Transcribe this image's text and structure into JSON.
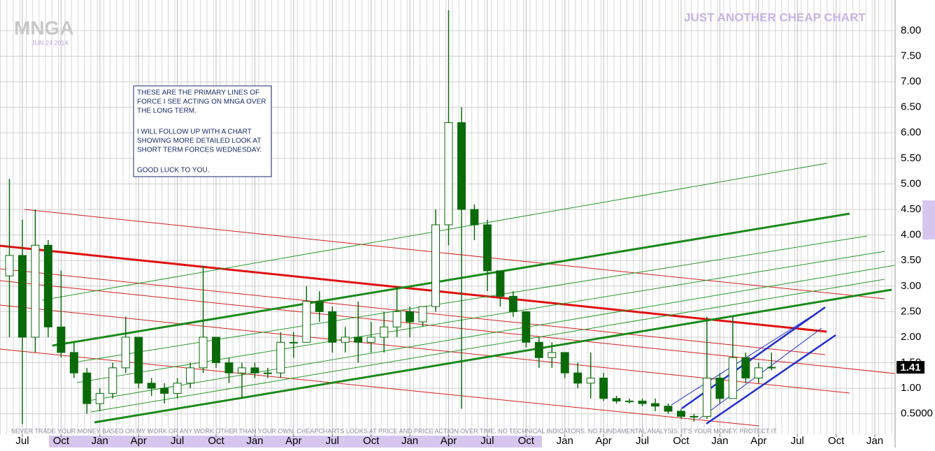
{
  "chart_data": {
    "type": "candlestick",
    "symbol": "MNGA",
    "date": "JUN 24 2014",
    "title": "JUST ANOTHER CHEAP CHART",
    "annotation": [
      "THESE ARE THE PRIMARY LINES OF",
      "FORCE I SEE ACTING ON MNGA OVER",
      "THE LONG TERM.",
      "I WILL FOLLOW UP WITH A CHART",
      "SHOWING MORE DETAILED LOOK AT",
      "SHORT TERM FORCES WEDNESDAY.",
      "GOOD LUCK TO YOU."
    ],
    "footnote": "NEVER TRADE YOUR MONEY BASED ON MY WORK OR ANY WORK OTHER THAN YOUR OWN. CHEAPCHARTS LOOKS AT PRICE AND PRICE ACTION OVER TIME. NO TECHNICAL INDICATORS. NO FUNDAMENTAL ANALYSIS. IT'S YOUR MONEY. PROTECT IT.",
    "last_value": 1.41,
    "color": "#0a6a0a",
    "x": [
      -1,
      0,
      1,
      2,
      3,
      4,
      5,
      6,
      7,
      8,
      9,
      10,
      11,
      12,
      13,
      14,
      15,
      16,
      17,
      18,
      19,
      20,
      21,
      22,
      23,
      24,
      25,
      26,
      27,
      28,
      29,
      30,
      31,
      32,
      33,
      34,
      35,
      36,
      37,
      38,
      39,
      40,
      41,
      42,
      43,
      44,
      45,
      46,
      47,
      48,
      49,
      50,
      51,
      52,
      53,
      54,
      55,
      56,
      57,
      58
    ],
    "open": [
      3.2,
      3.6,
      2.0,
      3.8,
      2.2,
      1.7,
      1.3,
      0.7,
      0.9,
      1.4,
      2.0,
      1.1,
      1.0,
      0.9,
      1.1,
      1.4,
      2.0,
      1.5,
      1.3,
      1.4,
      1.3,
      1.3,
      1.9,
      1.9,
      2.7,
      2.5,
      1.9,
      2.0,
      1.9,
      2.0,
      2.2,
      2.5,
      2.3,
      2.6,
      4.2,
      6.2,
      4.5,
      4.2,
      3.3,
      2.8,
      2.5,
      1.9,
      1.6,
      1.7,
      1.3,
      1.1,
      1.2,
      0.8,
      0.75,
      0.75,
      0.7,
      0.65,
      0.55,
      0.45,
      0.45,
      1.2,
      0.8,
      1.6,
      1.2,
      1.4
    ],
    "high": [
      5.1,
      4.3,
      4.5,
      3.9,
      3.3,
      1.9,
      1.4,
      1.0,
      1.5,
      2.4,
      2.0,
      1.2,
      1.1,
      1.2,
      1.5,
      3.4,
      2.0,
      1.6,
      1.5,
      1.5,
      1.4,
      2.1,
      2.1,
      3.0,
      2.9,
      2.6,
      2.2,
      2.7,
      2.3,
      2.5,
      3.0,
      2.6,
      2.6,
      4.5,
      8.4,
      6.5,
      4.6,
      4.3,
      3.3,
      2.9,
      2.5,
      2.0,
      1.9,
      1.7,
      1.5,
      1.7,
      1.3,
      0.85,
      0.8,
      0.8,
      0.8,
      0.7,
      0.6,
      0.5,
      2.4,
      1.3,
      2.4,
      1.7,
      1.5,
      1.7
    ],
    "low": [
      2.0,
      0.3,
      1.7,
      2.0,
      1.6,
      1.2,
      0.5,
      0.55,
      0.8,
      1.3,
      1.0,
      0.85,
      0.7,
      0.8,
      1.0,
      1.3,
      1.4,
      1.1,
      0.8,
      1.2,
      1.2,
      1.2,
      1.6,
      1.9,
      2.3,
      1.7,
      1.7,
      1.5,
      1.7,
      1.7,
      2.0,
      2.0,
      2.2,
      2.5,
      3.8,
      0.6,
      3.9,
      2.9,
      2.6,
      2.4,
      1.8,
      1.4,
      1.4,
      1.2,
      1.0,
      0.8,
      0.75,
      0.7,
      0.7,
      0.65,
      0.55,
      0.5,
      0.4,
      0.35,
      0.4,
      0.7,
      0.8,
      1.1,
      1.1,
      1.35
    ],
    "close": [
      3.6,
      2.0,
      3.8,
      2.2,
      1.7,
      1.3,
      0.7,
      0.9,
      1.4,
      2.0,
      1.1,
      1.0,
      0.9,
      1.1,
      1.4,
      2.0,
      1.5,
      1.3,
      1.4,
      1.3,
      1.3,
      1.9,
      1.9,
      2.7,
      2.5,
      1.9,
      2.0,
      1.9,
      2.0,
      2.2,
      2.5,
      2.3,
      2.6,
      4.2,
      6.2,
      4.5,
      4.2,
      3.3,
      2.8,
      2.5,
      1.9,
      1.6,
      1.7,
      1.3,
      1.1,
      1.2,
      0.8,
      0.75,
      0.75,
      0.7,
      0.65,
      0.55,
      0.45,
      0.45,
      1.2,
      0.8,
      1.6,
      1.2,
      1.4,
      1.41
    ],
    "xlim": [
      -1.73,
      67.57
    ],
    "xticks": [
      {
        "value": 0,
        "label": "Jul"
      },
      {
        "value": 3,
        "label": "Oct"
      },
      {
        "value": 6,
        "label": "Jan"
      },
      {
        "value": 9,
        "label": "Apr"
      },
      {
        "value": 12,
        "label": "Jul"
      },
      {
        "value": 15,
        "label": "Oct"
      },
      {
        "value": 18,
        "label": "Jan"
      },
      {
        "value": 21,
        "label": "Apr"
      },
      {
        "value": 24,
        "label": "Jul"
      },
      {
        "value": 27,
        "label": "Oct"
      },
      {
        "value": 30,
        "label": "Jan"
      },
      {
        "value": 33,
        "label": "Apr"
      },
      {
        "value": 36,
        "label": "Jul"
      },
      {
        "value": 39,
        "label": "Oct"
      },
      {
        "value": 42,
        "label": "Jan"
      },
      {
        "value": 45,
        "label": "Apr"
      },
      {
        "value": 48,
        "label": "Jul"
      },
      {
        "value": 51,
        "label": "Oct"
      },
      {
        "value": 54,
        "label": "Jan"
      },
      {
        "value": 57,
        "label": "Apr"
      },
      {
        "value": 60,
        "label": "Jul"
      },
      {
        "value": 63,
        "label": "Oct"
      },
      {
        "value": 66,
        "label": "Jan"
      }
    ],
    "ylim": [
      0.1,
      8.6
    ],
    "yticks": [
      {
        "value": 0.5,
        "label": "0.5000"
      },
      {
        "value": 1,
        "label": "1.00"
      },
      {
        "value": 1.5,
        "label": "1.50"
      },
      {
        "value": 2,
        "label": "2.00"
      },
      {
        "value": 2.5,
        "label": "2.50"
      },
      {
        "value": 3,
        "label": "3.00"
      },
      {
        "value": 3.5,
        "label": "3.50"
      },
      {
        "value": 4,
        "label": "4.00"
      },
      {
        "value": 4.5,
        "label": "4.50"
      },
      {
        "value": 5,
        "label": "5.00"
      },
      {
        "value": 5.5,
        "label": "5.50"
      },
      {
        "value": 6,
        "label": "6.00"
      },
      {
        "value": 6.5,
        "label": "6.50"
      },
      {
        "value": 7,
        "label": "7.00"
      },
      {
        "value": 7.5,
        "label": "7.50"
      },
      {
        "value": 8,
        "label": "8.00"
      }
    ],
    "grid": true
  }
}
